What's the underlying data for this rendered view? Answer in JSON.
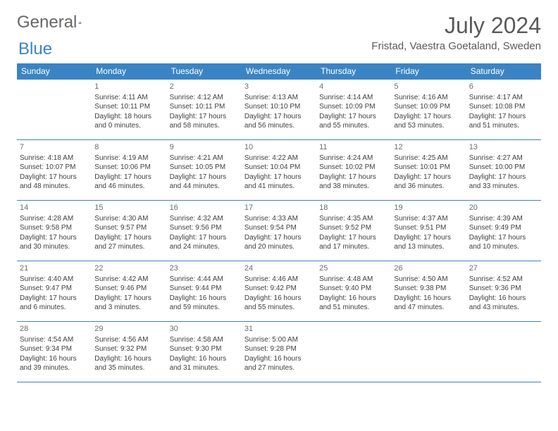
{
  "logo": {
    "general": "General",
    "blue": "Blue"
  },
  "title": "July 2024",
  "location": "Fristad, Vaestra Goetaland, Sweden",
  "colors": {
    "header_bg": "#3b84c4",
    "header_text": "#ffffff",
    "text": "#404040",
    "daynum": "#6d6d6d",
    "border": "#3b84c4",
    "logo_gray": "#676767",
    "logo_blue": "#3b84c4"
  },
  "weekdays": [
    "Sunday",
    "Monday",
    "Tuesday",
    "Wednesday",
    "Thursday",
    "Friday",
    "Saturday"
  ],
  "weeks": [
    [
      null,
      {
        "d": "1",
        "sr": "4:11 AM",
        "ss": "10:11 PM",
        "dl": "18 hours and 0 minutes."
      },
      {
        "d": "2",
        "sr": "4:12 AM",
        "ss": "10:11 PM",
        "dl": "17 hours and 58 minutes."
      },
      {
        "d": "3",
        "sr": "4:13 AM",
        "ss": "10:10 PM",
        "dl": "17 hours and 56 minutes."
      },
      {
        "d": "4",
        "sr": "4:14 AM",
        "ss": "10:09 PM",
        "dl": "17 hours and 55 minutes."
      },
      {
        "d": "5",
        "sr": "4:16 AM",
        "ss": "10:09 PM",
        "dl": "17 hours and 53 minutes."
      },
      {
        "d": "6",
        "sr": "4:17 AM",
        "ss": "10:08 PM",
        "dl": "17 hours and 51 minutes."
      }
    ],
    [
      {
        "d": "7",
        "sr": "4:18 AM",
        "ss": "10:07 PM",
        "dl": "17 hours and 48 minutes."
      },
      {
        "d": "8",
        "sr": "4:19 AM",
        "ss": "10:06 PM",
        "dl": "17 hours and 46 minutes."
      },
      {
        "d": "9",
        "sr": "4:21 AM",
        "ss": "10:05 PM",
        "dl": "17 hours and 44 minutes."
      },
      {
        "d": "10",
        "sr": "4:22 AM",
        "ss": "10:04 PM",
        "dl": "17 hours and 41 minutes."
      },
      {
        "d": "11",
        "sr": "4:24 AM",
        "ss": "10:02 PM",
        "dl": "17 hours and 38 minutes."
      },
      {
        "d": "12",
        "sr": "4:25 AM",
        "ss": "10:01 PM",
        "dl": "17 hours and 36 minutes."
      },
      {
        "d": "13",
        "sr": "4:27 AM",
        "ss": "10:00 PM",
        "dl": "17 hours and 33 minutes."
      }
    ],
    [
      {
        "d": "14",
        "sr": "4:28 AM",
        "ss": "9:58 PM",
        "dl": "17 hours and 30 minutes."
      },
      {
        "d": "15",
        "sr": "4:30 AM",
        "ss": "9:57 PM",
        "dl": "17 hours and 27 minutes."
      },
      {
        "d": "16",
        "sr": "4:32 AM",
        "ss": "9:56 PM",
        "dl": "17 hours and 24 minutes."
      },
      {
        "d": "17",
        "sr": "4:33 AM",
        "ss": "9:54 PM",
        "dl": "17 hours and 20 minutes."
      },
      {
        "d": "18",
        "sr": "4:35 AM",
        "ss": "9:52 PM",
        "dl": "17 hours and 17 minutes."
      },
      {
        "d": "19",
        "sr": "4:37 AM",
        "ss": "9:51 PM",
        "dl": "17 hours and 13 minutes."
      },
      {
        "d": "20",
        "sr": "4:39 AM",
        "ss": "9:49 PM",
        "dl": "17 hours and 10 minutes."
      }
    ],
    [
      {
        "d": "21",
        "sr": "4:40 AM",
        "ss": "9:47 PM",
        "dl": "17 hours and 6 minutes."
      },
      {
        "d": "22",
        "sr": "4:42 AM",
        "ss": "9:46 PM",
        "dl": "17 hours and 3 minutes."
      },
      {
        "d": "23",
        "sr": "4:44 AM",
        "ss": "9:44 PM",
        "dl": "16 hours and 59 minutes."
      },
      {
        "d": "24",
        "sr": "4:46 AM",
        "ss": "9:42 PM",
        "dl": "16 hours and 55 minutes."
      },
      {
        "d": "25",
        "sr": "4:48 AM",
        "ss": "9:40 PM",
        "dl": "16 hours and 51 minutes."
      },
      {
        "d": "26",
        "sr": "4:50 AM",
        "ss": "9:38 PM",
        "dl": "16 hours and 47 minutes."
      },
      {
        "d": "27",
        "sr": "4:52 AM",
        "ss": "9:36 PM",
        "dl": "16 hours and 43 minutes."
      }
    ],
    [
      {
        "d": "28",
        "sr": "4:54 AM",
        "ss": "9:34 PM",
        "dl": "16 hours and 39 minutes."
      },
      {
        "d": "29",
        "sr": "4:56 AM",
        "ss": "9:32 PM",
        "dl": "16 hours and 35 minutes."
      },
      {
        "d": "30",
        "sr": "4:58 AM",
        "ss": "9:30 PM",
        "dl": "16 hours and 31 minutes."
      },
      {
        "d": "31",
        "sr": "5:00 AM",
        "ss": "9:28 PM",
        "dl": "16 hours and 27 minutes."
      },
      null,
      null,
      null
    ]
  ],
  "labels": {
    "sunrise": "Sunrise: ",
    "sunset": "Sunset: ",
    "daylight": "Daylight: "
  }
}
